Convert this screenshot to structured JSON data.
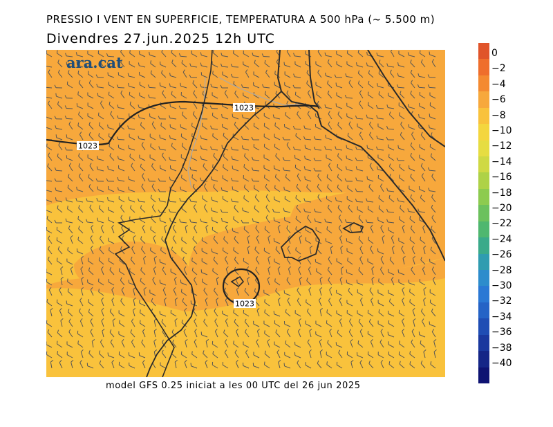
{
  "header": {
    "title": "PRESSIO I VENT EN SUPERFICIE, TEMPERATURA A 500 hPa (~ 5.500 m)",
    "date_line": "Divendres  27.jun.2025 12h UTC"
  },
  "logo": {
    "text": "ara.cat"
  },
  "map": {
    "isobar_labels": [
      "1023",
      "1023",
      "1023"
    ],
    "colors": {
      "warm": "#f7a83c",
      "mild": "#f9c23c",
      "border_line": "#aaaaaa",
      "coast": "#2a2a2a"
    }
  },
  "footer": {
    "text": "model GFS 0.25 iniciat a les 00 UTC del 26 jun 2025"
  },
  "colorbar": {
    "labels": [
      "0",
      "−2",
      "−4",
      "−6",
      "−8",
      "−10",
      "−12",
      "−14",
      "−16",
      "−18",
      "−20",
      "−22",
      "−24",
      "−26",
      "−28",
      "−30",
      "−32",
      "−34",
      "−36",
      "−38",
      "−40"
    ],
    "colors": [
      "#e0542a",
      "#ef6e2c",
      "#f48a31",
      "#f7a83c",
      "#f9c23c",
      "#f4d63e",
      "#e6dd42",
      "#cfd944",
      "#aed247",
      "#8dcb4f",
      "#6cc15d",
      "#4fb76f",
      "#3aaa8a",
      "#2f9cb0",
      "#2d8ccc",
      "#2a78d4",
      "#2563c6",
      "#1f4db4",
      "#1a389e",
      "#152687",
      "#0e1372"
    ]
  }
}
